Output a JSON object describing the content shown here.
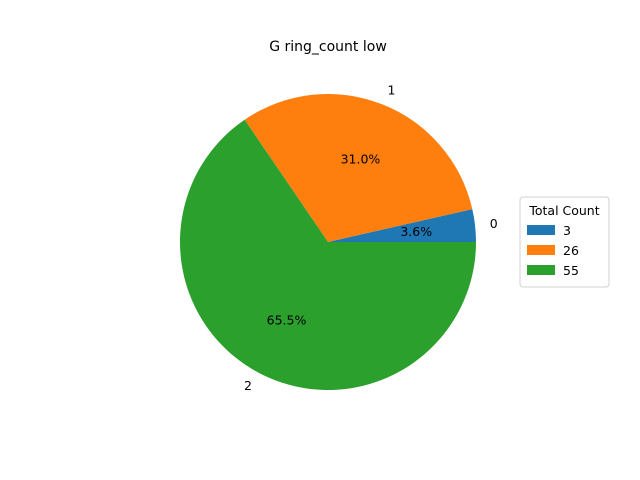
{
  "chart_data": {
    "type": "pie",
    "title": "G ring_count low",
    "categories": [
      "0",
      "1",
      "2"
    ],
    "values": [
      3,
      26,
      55
    ],
    "percent_labels": [
      "3.6%",
      "31.0%",
      "65.5%"
    ],
    "colors": [
      "#1f77b4",
      "#ff7f0e",
      "#2ca02c"
    ],
    "start_angle_deg": 0,
    "direction": "counterclockwise",
    "legend": {
      "title": "Total Count",
      "placement": "center-right",
      "entries": [
        "3",
        "26",
        "55"
      ]
    }
  }
}
